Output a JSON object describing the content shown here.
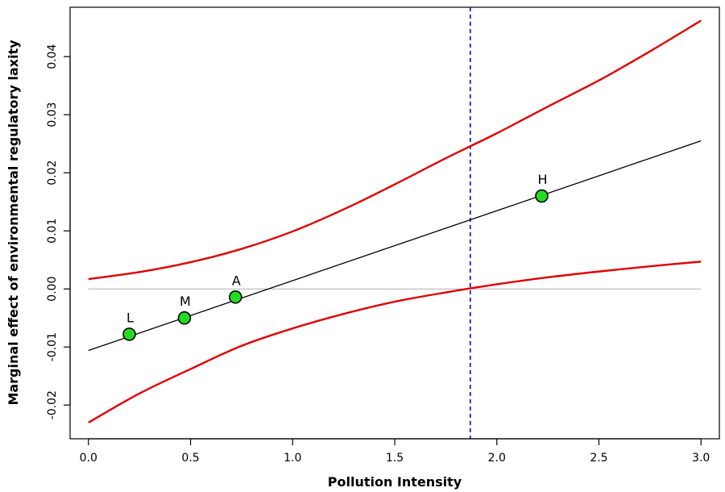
{
  "chart_data": {
    "type": "line",
    "title": "",
    "xlabel": "Pollution Intensity",
    "ylabel": "Marginal effect of environmental regulatory laxity",
    "xlim": [
      -0.09,
      3.09
    ],
    "ylim": [
      -0.0258,
      0.0485
    ],
    "x_ticks": [
      0.0,
      0.5,
      1.0,
      1.5,
      2.0,
      2.5,
      3.0
    ],
    "x_tick_labels": [
      "0.0",
      "0.5",
      "1.0",
      "1.5",
      "2.0",
      "2.5",
      "3.0"
    ],
    "y_ticks": [
      -0.02,
      -0.01,
      0.0,
      0.01,
      0.02,
      0.03,
      0.04
    ],
    "y_tick_labels": [
      "-0.02",
      "-0.01",
      "0.00",
      "0.01",
      "0.02",
      "0.03",
      "0.04"
    ],
    "grid": false,
    "legend": "none",
    "series": [
      {
        "role": "marginal-effect",
        "color": "#000000",
        "x": [
          0.0,
          3.0
        ],
        "y": [
          -0.0106,
          0.0255
        ]
      },
      {
        "role": "upper-confidence-bound",
        "color": "#e00000",
        "x": [
          0.0,
          0.25,
          0.5,
          0.75,
          1.0,
          1.25,
          1.5,
          1.75,
          2.0,
          2.25,
          2.5,
          2.75,
          3.0
        ],
        "y": [
          0.0017,
          0.0029,
          0.0046,
          0.0069,
          0.0099,
          0.0137,
          0.018,
          0.0225,
          0.0268,
          0.0314,
          0.0359,
          0.0409,
          0.0462
        ]
      },
      {
        "role": "lower-confidence-bound",
        "color": "#e00000",
        "x": [
          0.0,
          0.25,
          0.5,
          0.75,
          1.0,
          1.25,
          1.5,
          1.75,
          2.0,
          2.25,
          2.5,
          2.75,
          3.0
        ],
        "y": [
          -0.023,
          -0.018,
          -0.0138,
          -0.0098,
          -0.0068,
          -0.0043,
          -0.0022,
          -0.0006,
          0.0008,
          0.002,
          0.003,
          0.0039,
          0.0047
        ]
      }
    ],
    "points": [
      {
        "label": "L",
        "x": 0.2,
        "y": -0.0078
      },
      {
        "label": "M",
        "x": 0.47,
        "y": -0.005
      },
      {
        "label": "A",
        "x": 0.72,
        "y": -0.0014
      },
      {
        "label": "H",
        "x": 2.22,
        "y": 0.016
      }
    ],
    "point_color": "#22dd22",
    "reference_lines": [
      {
        "orientation": "horizontal",
        "value": 0.0,
        "color": "#b0b0b0",
        "style": "solid"
      },
      {
        "orientation": "vertical",
        "value": 1.87,
        "color": "#0000ee",
        "style": "dashed"
      }
    ]
  }
}
